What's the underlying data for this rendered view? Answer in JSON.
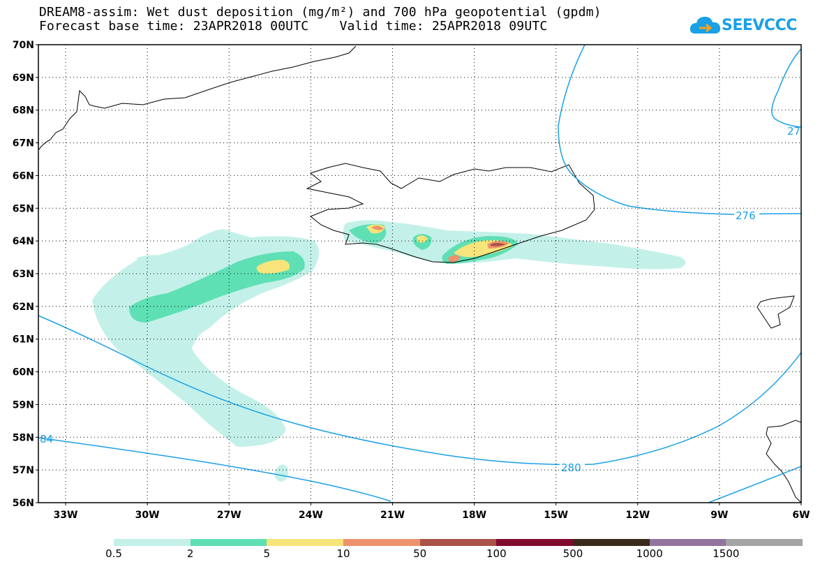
{
  "title": {
    "line1": "DREAM8-assim: Wet dust deposition (mg/m²) and 700 hPa geopotential (gpdm)",
    "line2": "Forecast base time: 23APR2018 00UTC    Valid time: 25APR2018 09UTC"
  },
  "logo": {
    "text": "SEEVCCC",
    "icon": "cloud-logo-icon",
    "color": "#1aa0e6"
  },
  "map": {
    "lat_labels": [
      "70N",
      "69N",
      "68N",
      "67N",
      "66N",
      "65N",
      "64N",
      "63N",
      "62N",
      "61N",
      "60N",
      "59N",
      "58N",
      "57N",
      "56N"
    ],
    "lon_labels": [
      "33W",
      "30W",
      "27W",
      "24W",
      "21W",
      "18W",
      "15W",
      "12W",
      "9W",
      "6W"
    ],
    "lat_range": [
      56,
      70
    ],
    "lon_range": [
      -34.0,
      -6.0
    ],
    "contour_color": "#1aa0e6",
    "contour_labels": [
      "276",
      "280",
      "84",
      "27"
    ]
  },
  "colorbar": {
    "colors": [
      "#c3f1e9",
      "#5fdfb4",
      "#f7e47a",
      "#ec936d",
      "#aa5248",
      "#7f0b2f",
      "#3a2a1a",
      "#93749e",
      "#a4a4a4"
    ],
    "labels": [
      "0.5",
      "2",
      "5",
      "10",
      "50",
      "100",
      "500",
      "1000",
      "1500"
    ]
  }
}
